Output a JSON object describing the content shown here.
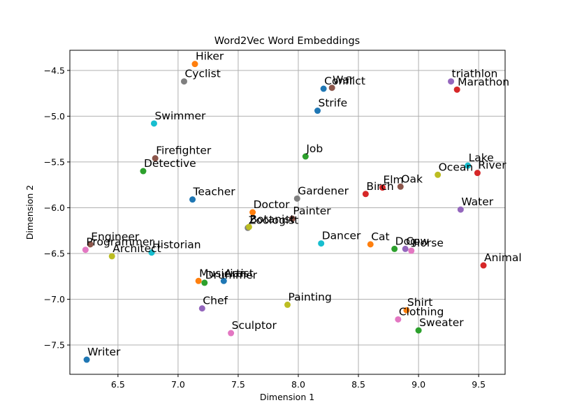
{
  "chart_data": {
    "type": "scatter",
    "title": "Word2Vec Word Embeddings",
    "xlabel": "Dimension 1",
    "ylabel": "Dimension 2",
    "xlim": [
      6.1,
      9.72
    ],
    "ylim": [
      -7.82,
      -4.28
    ],
    "xticks": [
      6.5,
      7.0,
      7.5,
      8.0,
      8.5,
      9.0,
      9.5
    ],
    "yticks": [
      -7.5,
      -7.0,
      -6.5,
      -6.0,
      -5.5,
      -5.0,
      -4.5
    ],
    "xtick_labels": [
      "6.5",
      "7.0",
      "7.5",
      "8.0",
      "8.5",
      "9.0",
      "9.5"
    ],
    "ytick_labels": [
      "−7.5",
      "−7.0",
      "−6.5",
      "−6.0",
      "−5.5",
      "−5.0",
      "−4.5"
    ],
    "grid": true,
    "points": [
      {
        "word": "Hiker",
        "x": 7.14,
        "y": -4.43,
        "color": "#ff7f0e"
      },
      {
        "word": "Cyclist",
        "x": 7.05,
        "y": -4.62,
        "color": "#7f7f7f"
      },
      {
        "word": "Swimmer",
        "x": 6.8,
        "y": -5.08,
        "color": "#17becf"
      },
      {
        "word": "Firefighter",
        "x": 6.81,
        "y": -5.46,
        "color": "#8c564b"
      },
      {
        "word": "Detective",
        "x": 6.71,
        "y": -5.6,
        "color": "#2ca02c"
      },
      {
        "word": "Teacher",
        "x": 7.12,
        "y": -5.91,
        "color": "#1f77b4"
      },
      {
        "word": "Engineer",
        "x": 6.27,
        "y": -6.4,
        "color": "#8c564b"
      },
      {
        "word": "Programmer",
        "x": 6.23,
        "y": -6.46,
        "color": "#e377c2"
      },
      {
        "word": "Architect",
        "x": 6.45,
        "y": -6.53,
        "color": "#bcbd22"
      },
      {
        "word": "Historian",
        "x": 6.78,
        "y": -6.49,
        "color": "#17becf"
      },
      {
        "word": "Writer",
        "x": 6.24,
        "y": -7.66,
        "color": "#1f77b4"
      },
      {
        "word": "Musician",
        "x": 7.17,
        "y": -6.8,
        "color": "#ff7f0e"
      },
      {
        "word": "Drummer",
        "x": 7.22,
        "y": -6.82,
        "color": "#2ca02c"
      },
      {
        "word": "Artist",
        "x": 7.38,
        "y": -6.8,
        "color": "#1f77b4"
      },
      {
        "word": "Chef",
        "x": 7.2,
        "y": -7.1,
        "color": "#9467bd"
      },
      {
        "word": "Sculptor",
        "x": 7.44,
        "y": -7.37,
        "color": "#e377c2"
      },
      {
        "word": "Doctor",
        "x": 7.62,
        "y": -6.05,
        "color": "#ff7f0e"
      },
      {
        "word": "Zoologist",
        "x": 7.58,
        "y": -6.22,
        "color": "#7f7f7f"
      },
      {
        "word": "Botanist",
        "x": 7.59,
        "y": -6.21,
        "color": "#bcbd22"
      },
      {
        "word": "Painter",
        "x": 7.95,
        "y": -6.12,
        "color": "#8c564b"
      },
      {
        "word": "Gardener",
        "x": 7.99,
        "y": -5.9,
        "color": "#7f7f7f"
      },
      {
        "word": "Job",
        "x": 8.06,
        "y": -5.44,
        "color": "#2ca02c"
      },
      {
        "word": "Painting",
        "x": 7.91,
        "y": -7.06,
        "color": "#bcbd22"
      },
      {
        "word": "Dancer",
        "x": 8.19,
        "y": -6.39,
        "color": "#17becf"
      },
      {
        "word": "Strife",
        "x": 8.16,
        "y": -4.94,
        "color": "#1f77b4"
      },
      {
        "word": "Conflict",
        "x": 8.21,
        "y": -4.7,
        "color": "#1f77b4"
      },
      {
        "word": "War",
        "x": 8.28,
        "y": -4.69,
        "color": "#8c564b"
      },
      {
        "word": "Birch",
        "x": 8.56,
        "y": -5.85,
        "color": "#d62728"
      },
      {
        "word": "Elm",
        "x": 8.7,
        "y": -5.78,
        "color": "#d62728"
      },
      {
        "word": "Oak",
        "x": 8.85,
        "y": -5.77,
        "color": "#8c564b"
      },
      {
        "word": "Cat",
        "x": 8.6,
        "y": -6.4,
        "color": "#ff7f0e"
      },
      {
        "word": "Dog",
        "x": 8.8,
        "y": -6.45,
        "color": "#2ca02c"
      },
      {
        "word": "Cow",
        "x": 8.89,
        "y": -6.45,
        "color": "#9467bd"
      },
      {
        "word": "Horse",
        "x": 8.94,
        "y": -6.47,
        "color": "#e377c2"
      },
      {
        "word": "Shirt",
        "x": 8.9,
        "y": -7.12,
        "color": "#ff7f0e"
      },
      {
        "word": "Clothing",
        "x": 8.83,
        "y": -7.22,
        "color": "#e377c2"
      },
      {
        "word": "Sweater",
        "x": 9.0,
        "y": -7.34,
        "color": "#2ca02c"
      },
      {
        "word": "Ocean",
        "x": 9.16,
        "y": -5.64,
        "color": "#bcbd22"
      },
      {
        "word": "Lake",
        "x": 9.41,
        "y": -5.54,
        "color": "#17becf"
      },
      {
        "word": "River",
        "x": 9.49,
        "y": -5.62,
        "color": "#d62728"
      },
      {
        "word": "Water",
        "x": 9.35,
        "y": -6.02,
        "color": "#9467bd"
      },
      {
        "word": "Animal",
        "x": 9.54,
        "y": -6.63,
        "color": "#d62728"
      },
      {
        "word": "triathlon",
        "x": 9.27,
        "y": -4.62,
        "color": "#9467bd"
      },
      {
        "word": "Marathon",
        "x": 9.32,
        "y": -4.71,
        "color": "#d62728"
      }
    ]
  }
}
